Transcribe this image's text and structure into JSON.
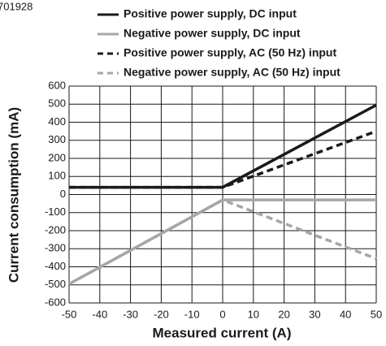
{
  "chart_data": {
    "type": "line",
    "annotation": "701928",
    "xlabel": "Measured current (A)",
    "ylabel": "Current consumption (mA)",
    "x": [
      -50,
      0,
      50
    ],
    "series": [
      {
        "name": "Positive power supply, DC input",
        "color": "#1a1a1a",
        "style": "solid",
        "values": [
          40,
          40,
          495
        ]
      },
      {
        "name": "Negative power supply, DC input",
        "color": "#a6a6a6",
        "style": "solid",
        "values": [
          -495,
          -30,
          -30
        ]
      },
      {
        "name": "Positive power supply, AC (50 Hz) input",
        "color": "#1a1a1a",
        "style": "dashed",
        "values": [
          40,
          40,
          350
        ]
      },
      {
        "name": "Negative power supply, AC (50 Hz) input",
        "color": "#a6a6a6",
        "style": "dashed",
        "values": [
          -495,
          -30,
          -355
        ]
      }
    ],
    "xlim": [
      -50,
      50
    ],
    "xticks": [
      -50,
      -40,
      -30,
      -20,
      -10,
      0,
      10,
      20,
      30,
      40,
      50
    ],
    "ylim": [
      -600,
      600
    ],
    "yticks": [
      -600,
      -500,
      -400,
      -300,
      -200,
      -100,
      0,
      100,
      200,
      300,
      400,
      500,
      600
    ],
    "grid": true
  }
}
